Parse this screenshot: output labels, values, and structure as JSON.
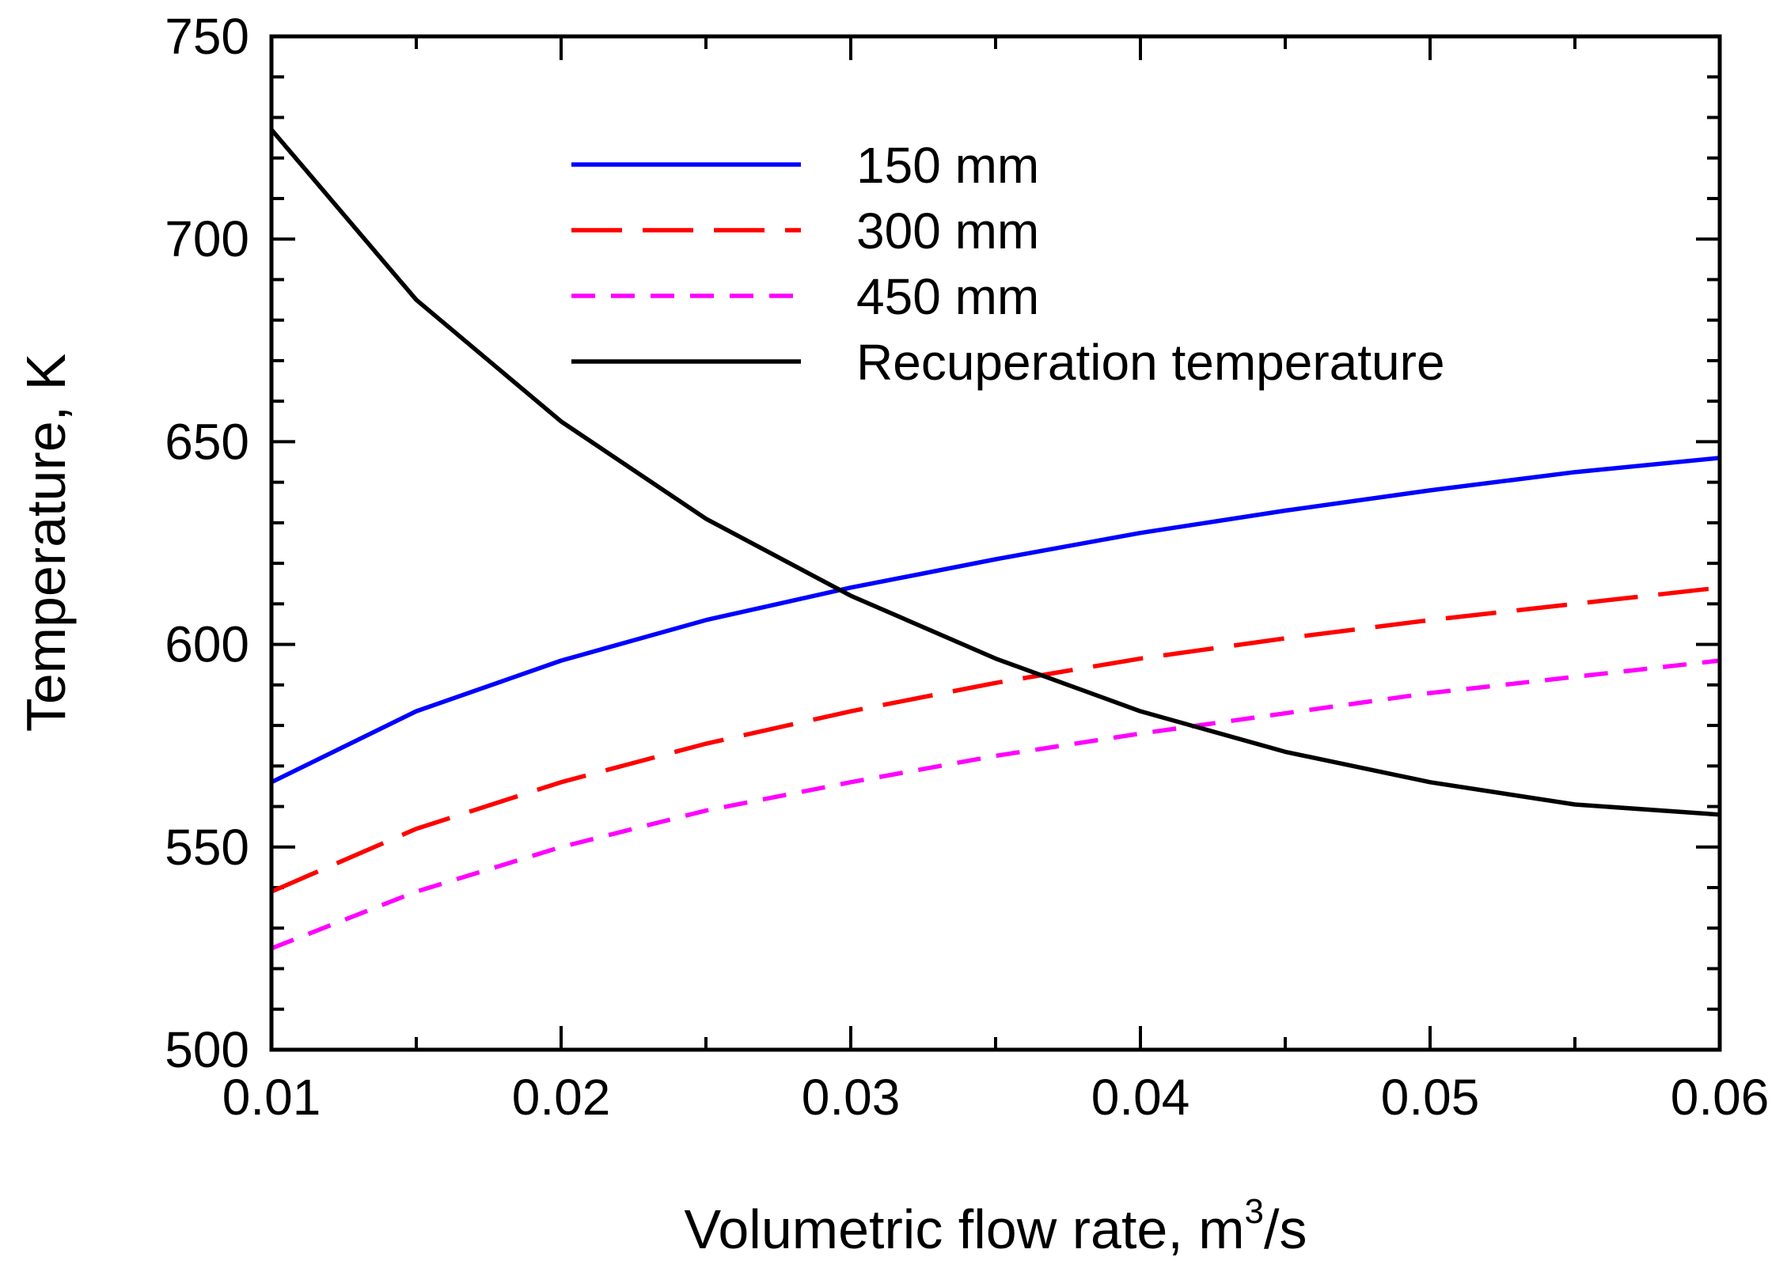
{
  "chart_data": {
    "type": "line",
    "title": "",
    "xlabel": "Volumetric flow rate, m",
    "xlabel_superscript": "3",
    "xlabel_suffix": "/s",
    "ylabel": "Temperature, K",
    "xlim": [
      0.01,
      0.06
    ],
    "ylim": [
      500,
      750
    ],
    "x_ticks": [
      0.01,
      0.02,
      0.03,
      0.04,
      0.05,
      0.06
    ],
    "x_tick_labels": [
      "0.01",
      "0.02",
      "0.03",
      "0.04",
      "0.05",
      "0.06"
    ],
    "x_minor_step": 0.005,
    "y_ticks": [
      500,
      550,
      600,
      650,
      700,
      750
    ],
    "y_tick_labels": [
      "500",
      "550",
      "600",
      "650",
      "700",
      "750"
    ],
    "y_minor_step": 10,
    "grid": false,
    "legend_position": "top-center",
    "x": [
      0.01,
      0.015,
      0.02,
      0.025,
      0.03,
      0.035,
      0.04,
      0.045,
      0.05,
      0.055,
      0.06
    ],
    "series": [
      {
        "name": "150 mm",
        "color": "#0000ff",
        "dash": "solid",
        "values": [
          566,
          583.5,
          596,
          606,
          614,
          621,
          627.5,
          633,
          638,
          642.5,
          646
        ]
      },
      {
        "name": "300 mm",
        "color": "#ff0000",
        "dash": "long-dash",
        "values": [
          539,
          554.5,
          566,
          575.5,
          583.5,
          590.5,
          596.5,
          601.5,
          606,
          610,
          614
        ]
      },
      {
        "name": "450 mm",
        "color": "#ff00ff",
        "dash": "short-dash",
        "values": [
          525,
          539,
          550,
          559,
          566,
          572.5,
          578,
          583,
          588,
          592,
          596
        ]
      },
      {
        "name": "Recuperation temperature",
        "color": "#000000",
        "dash": "solid",
        "values": [
          727,
          685,
          655,
          631,
          612,
          596.5,
          583.5,
          573.5,
          566,
          560.5,
          558
        ]
      }
    ]
  }
}
